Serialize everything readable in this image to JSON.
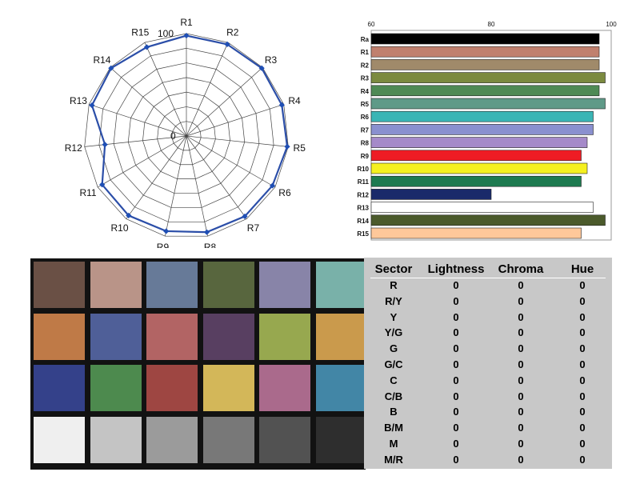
{
  "chart_data": [
    {
      "type": "radar",
      "categories": [
        "R1",
        "R2",
        "R3",
        "R4",
        "R5",
        "R6",
        "R7",
        "R8",
        "R9",
        "R10",
        "R11",
        "R12",
        "R13",
        "R14",
        "R15"
      ],
      "values": [
        98,
        98,
        99,
        98,
        99,
        97,
        97,
        96,
        95,
        96,
        95,
        80,
        97,
        99,
        95
      ],
      "range": [
        0,
        100
      ],
      "tick_labels": {
        "min": "0",
        "max": "100"
      },
      "rings": 7,
      "line_color": "#2b4ea8",
      "marker_color": "#1f4fb5"
    },
    {
      "type": "bar",
      "orientation": "horizontal",
      "categories": [
        "Ra",
        "R1",
        "R2",
        "R3",
        "R4",
        "R5",
        "R6",
        "R7",
        "R8",
        "R9",
        "R10",
        "R11",
        "R12",
        "R13",
        "R14",
        "R15"
      ],
      "values": [
        98,
        98,
        98,
        99,
        98,
        99,
        97,
        97,
        96,
        95,
        96,
        95,
        80,
        97,
        99,
        95
      ],
      "colors": [
        "#000000",
        "#c0806e",
        "#a08a6a",
        "#7b8a40",
        "#4f8a55",
        "#5f9a88",
        "#3ab5b5",
        "#8a90cf",
        "#a58ac9",
        "#ee1c24",
        "#f5f020",
        "#1e7a50",
        "#1a2a6a",
        "#ffffff",
        "#4b5a2b",
        "#ffc89a"
      ],
      "xlim": [
        60,
        100
      ],
      "xticks": [
        60,
        80,
        100
      ]
    }
  ],
  "color_checker": {
    "patches": [
      "#6a5045",
      "#b99488",
      "#677a98",
      "#58663e",
      "#8884a8",
      "#79b1a9",
      "#bf7a47",
      "#4f5f98",
      "#b26464",
      "#583f61",
      "#97a84f",
      "#ca9a4c",
      "#34418a",
      "#4d8a4e",
      "#9e4642",
      "#d3b759",
      "#aa6a8c",
      "#4286a6",
      "#efefef",
      "#c4c4c4",
      "#9b9b9b",
      "#787878",
      "#525252",
      "#2e2e2e"
    ]
  },
  "sector_table": {
    "headers": [
      "Sector",
      "Lightness",
      "Chroma",
      "Hue"
    ],
    "rows": [
      [
        "R",
        "0",
        "0",
        "0"
      ],
      [
        "R/Y",
        "0",
        "0",
        "0"
      ],
      [
        "Y",
        "0",
        "0",
        "0"
      ],
      [
        "Y/G",
        "0",
        "0",
        "0"
      ],
      [
        "G",
        "0",
        "0",
        "0"
      ],
      [
        "G/C",
        "0",
        "0",
        "0"
      ],
      [
        "C",
        "0",
        "0",
        "0"
      ],
      [
        "C/B",
        "0",
        "0",
        "0"
      ],
      [
        "B",
        "0",
        "0",
        "0"
      ],
      [
        "B/M",
        "0",
        "0",
        "0"
      ],
      [
        "M",
        "0",
        "0",
        "0"
      ],
      [
        "M/R",
        "0",
        "0",
        "0"
      ]
    ]
  }
}
